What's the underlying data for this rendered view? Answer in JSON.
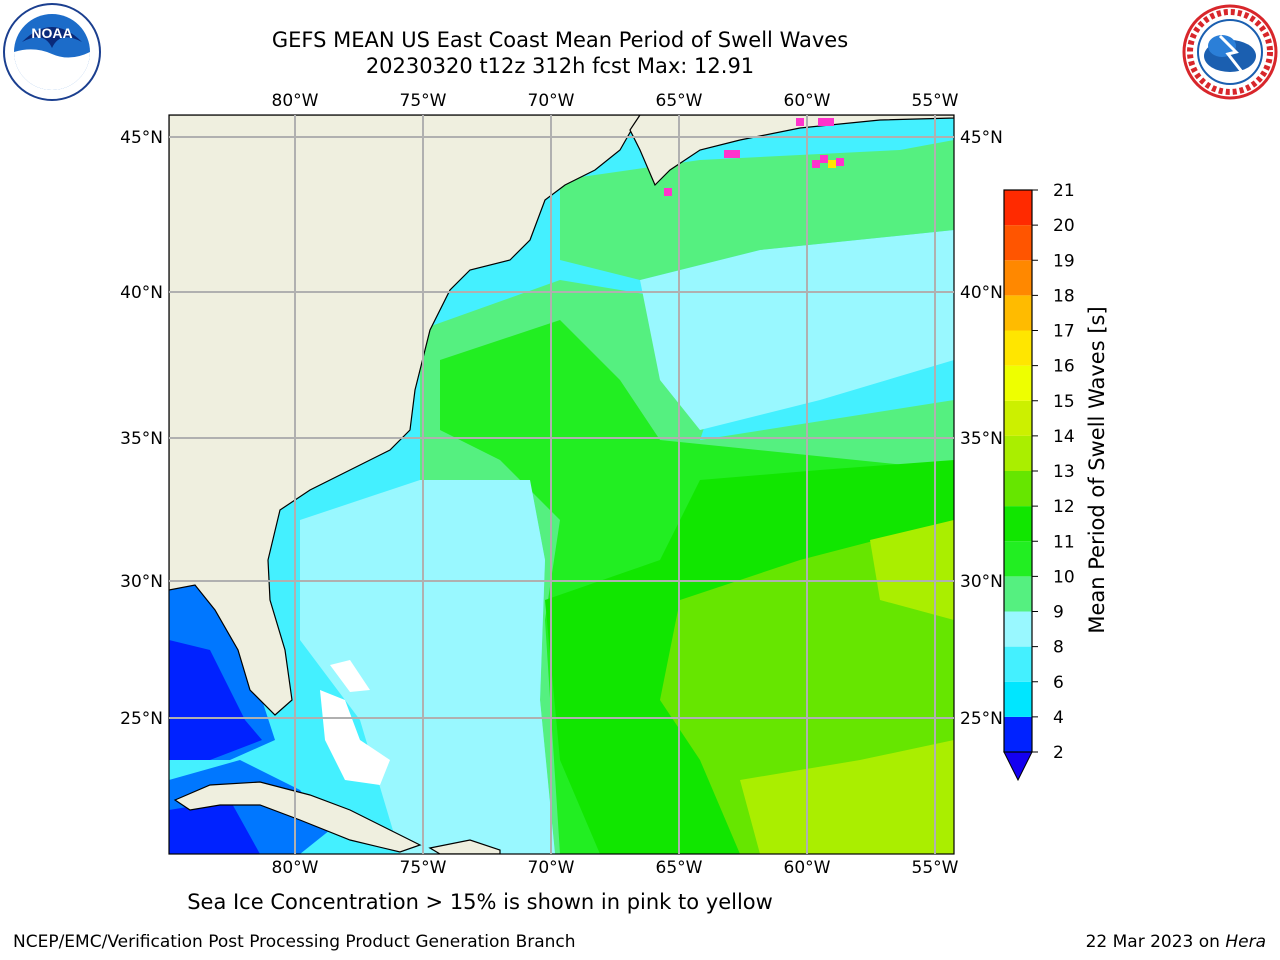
{
  "header": {
    "title_line1": "GEFS MEAN US East Coast Mean Period of Swell Waves",
    "title_line2": "20230320 t12z 312h fcst   Max: 12.91"
  },
  "logos": {
    "left": {
      "name": "NOAA",
      "icon": "noaa-logo-icon"
    },
    "right": {
      "name": "NATIONAL WEATHER SERVICE",
      "icon": "nws-logo-icon"
    }
  },
  "map": {
    "lon_labels": [
      "80°W",
      "75°W",
      "70°W",
      "65°W",
      "60°W",
      "55°W"
    ],
    "lat_labels": [
      "45°N",
      "40°N",
      "35°N",
      "30°N",
      "25°N"
    ],
    "land_color": "#efefdf",
    "gridline_color": "#b0b0b0"
  },
  "colorbar": {
    "title": "Mean Period of Swell Waves [s]",
    "tick_labels": [
      "2",
      "4",
      "6",
      "8",
      "9",
      "10",
      "11",
      "12",
      "13",
      "14",
      "15",
      "16",
      "17",
      "18",
      "19",
      "20",
      "21"
    ],
    "colors": [
      "#0022ff",
      "#0077ff",
      "#00e6ff",
      "#44f0ff",
      "#99f8ff",
      "#55f080",
      "#22ee22",
      "#11e600",
      "#66e600",
      "#aaee00",
      "#ccf000",
      "#eeff00",
      "#ffe600",
      "#ffbb00",
      "#ff8800",
      "#ff5500",
      "#ff2a00",
      "#ff0000"
    ],
    "underflow_color": "#1400f0"
  },
  "caption": "Sea Ice Concentration > 15% is shown in pink to yellow",
  "footer": {
    "left": "NCEP/EMC/Verification Post Processing Product Generation Branch",
    "right_date": "22 Mar 2023 on ",
    "right_host": "Hera"
  }
}
